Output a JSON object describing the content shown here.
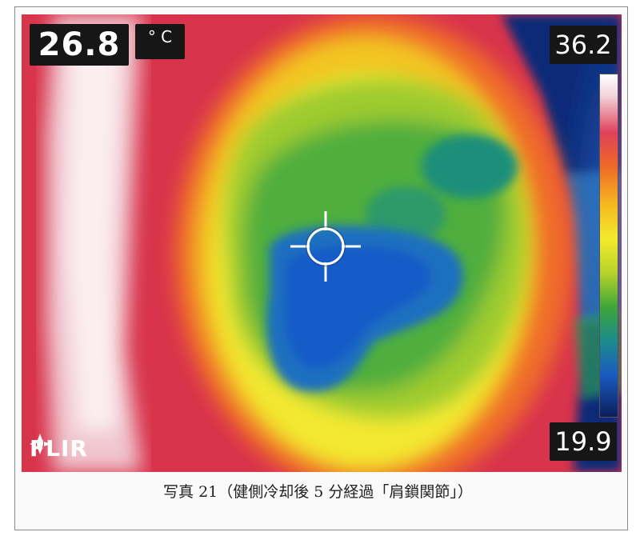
{
  "readout": {
    "spot_temperature": "26.8",
    "unit": "° C"
  },
  "scale": {
    "max": "36.2",
    "min": "19.9"
  },
  "logo": {
    "text": "FLIR"
  },
  "caption": {
    "text": "写真 21（健側冷却後 5 分経過「肩鎖関節」）"
  },
  "colors": {
    "hot": "#ffffff",
    "warm_red": "#e0405a",
    "orange": "#f06a28",
    "yellow": "#f3ea2c",
    "green": "#3ea63a",
    "blue": "#1a5ac0",
    "dark_blue": "#0c1f5a"
  },
  "icons": {
    "crosshair": "crosshair-icon",
    "logo_mark": "flir-logo-icon"
  }
}
